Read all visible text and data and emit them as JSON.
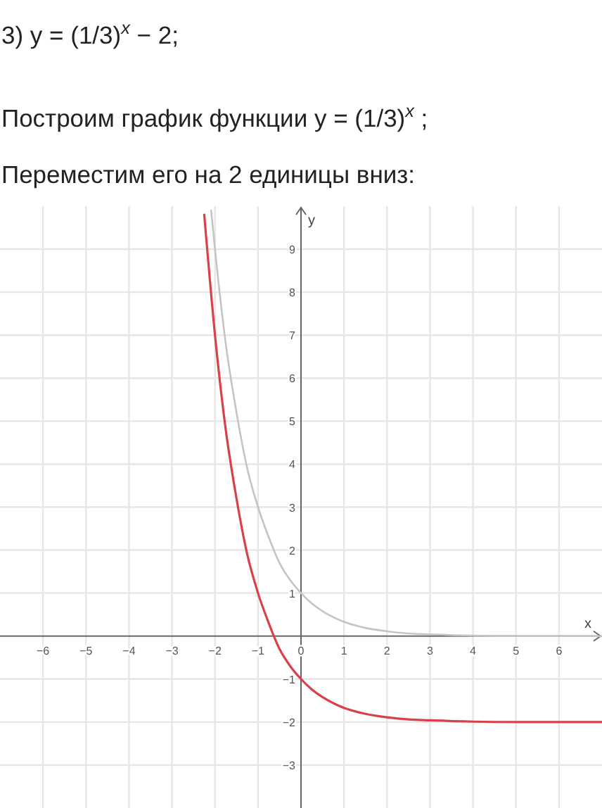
{
  "chart_data": {
    "type": "line",
    "title": "3) y = (1/3)$^{x}$ − 2;",
    "subtitle": "Построим график функции y = (1/3)$^{x}$ ;",
    "annotations": [
      "Переместим его на 2 единицы вниз:"
    ],
    "xlabel": "x",
    "ylabel": "y",
    "xlim": [
      -7,
      7
    ],
    "ylim": [
      -4,
      10
    ],
    "xticks": [
      -6,
      -5,
      -4,
      -3,
      -2,
      -1,
      0,
      1,
      2,
      3,
      4,
      5,
      6
    ],
    "yticks": [
      -3,
      -2,
      -1,
      1,
      2,
      3,
      4,
      5,
      6,
      7,
      8,
      9
    ],
    "grid": true,
    "series": [
      {
        "color": "#c4c4c4",
        "x": [
          -2.09,
          -2,
          -1.75,
          -1.5,
          -1.25,
          -1,
          -0.75,
          -0.5,
          -0.25,
          0,
          0.25,
          0.5,
          0.75,
          1,
          1.5,
          2,
          2.5,
          3,
          4,
          5,
          7
        ],
        "values": [
          9.9,
          9,
          6.8,
          5.2,
          3.9,
          3,
          2.3,
          1.7,
          1.3,
          1,
          0.76,
          0.58,
          0.44,
          0.33,
          0.19,
          0.11,
          0.06,
          0.04,
          0.01,
          0,
          0
        ]
      },
      {
        "color": "#d9404a",
        "x": [
          -2.25,
          -2,
          -1.75,
          -1.5,
          -1.25,
          -1,
          -0.75,
          -0.5,
          -0.25,
          0,
          0.25,
          0.5,
          0.75,
          1,
          1.5,
          2,
          2.5,
          3,
          4,
          5,
          7
        ],
        "values": [
          9.8,
          7,
          4.8,
          3.2,
          1.9,
          1,
          0.3,
          -0.3,
          -0.7,
          -1,
          -1.24,
          -1.42,
          -1.56,
          -1.67,
          -1.81,
          -1.89,
          -1.94,
          -1.96,
          -1.99,
          -2,
          -2
        ]
      }
    ]
  }
}
